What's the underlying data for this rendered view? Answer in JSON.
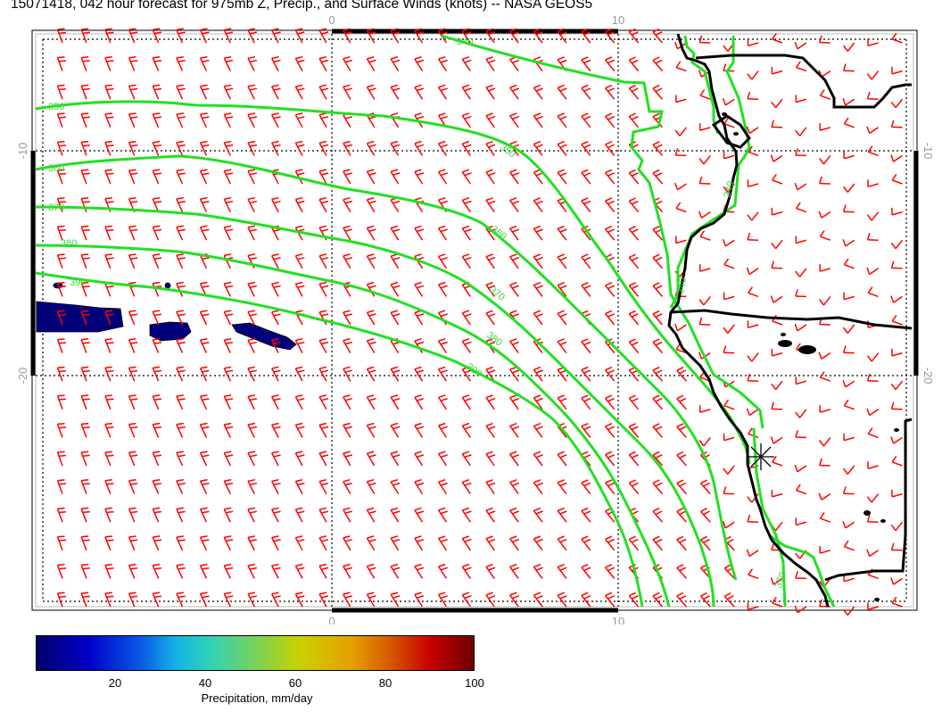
{
  "title": "15071418, 042 hour forecast for 975mb Z, Precip., and Surface Winds (knots) -- NASA GEOS5",
  "axes": {
    "top": [
      "0",
      "10"
    ],
    "bottom": [
      "0",
      "10"
    ],
    "left": [
      "-10",
      "-20"
    ],
    "right": [
      "-10",
      "-20"
    ]
  },
  "contour_labels": [
    "340",
    "350",
    "360",
    "370",
    "380",
    "390",
    "350",
    "360",
    "370",
    "380",
    "390",
    "340",
    "340",
    "370"
  ],
  "colorbar": {
    "ticks": [
      "20",
      "40",
      "60",
      "80",
      "100"
    ],
    "label": "Precipitation, mm/day"
  },
  "colors": {
    "contour": "#22e022",
    "wind_barb": "#ff0000",
    "coast": "#000000",
    "precip": "#000080",
    "grid": "#000000"
  },
  "icons": [
    "wind-barb-icon",
    "star-marker-icon"
  ]
}
